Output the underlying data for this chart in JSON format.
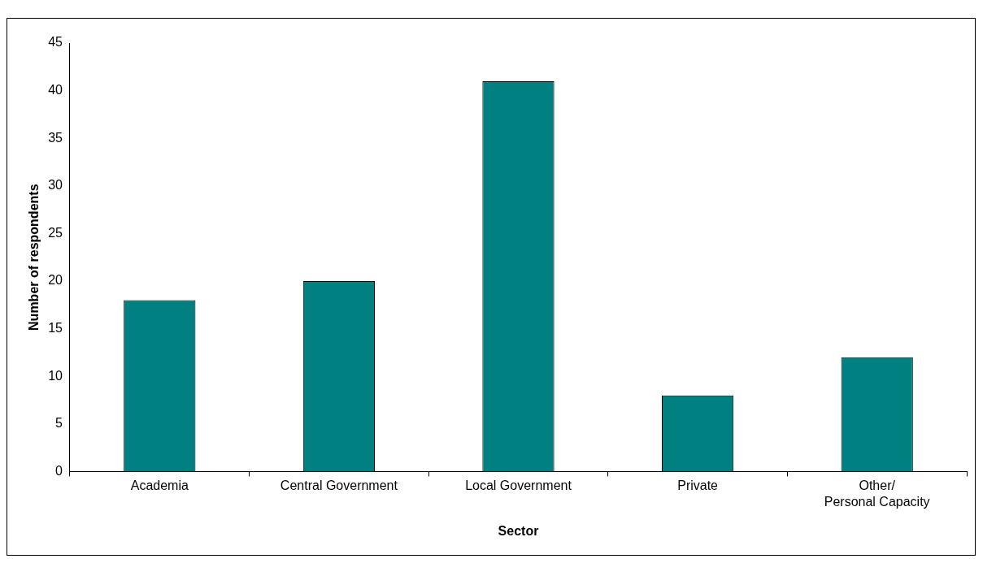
{
  "chart_data": {
    "type": "bar",
    "xlabel": "Sector",
    "ylabel": "Number of respondents",
    "categories": [
      "Academia",
      "Central Government",
      "Local Government",
      "Private",
      "Other/Personal Capacity"
    ],
    "values": [
      18,
      20,
      41,
      8,
      12
    ],
    "color": "#008080",
    "ylim": [
      0,
      45
    ],
    "yticks": [
      0,
      5,
      10,
      15,
      20,
      25,
      30,
      35,
      40,
      45
    ],
    "grid": false,
    "legend": false
  }
}
